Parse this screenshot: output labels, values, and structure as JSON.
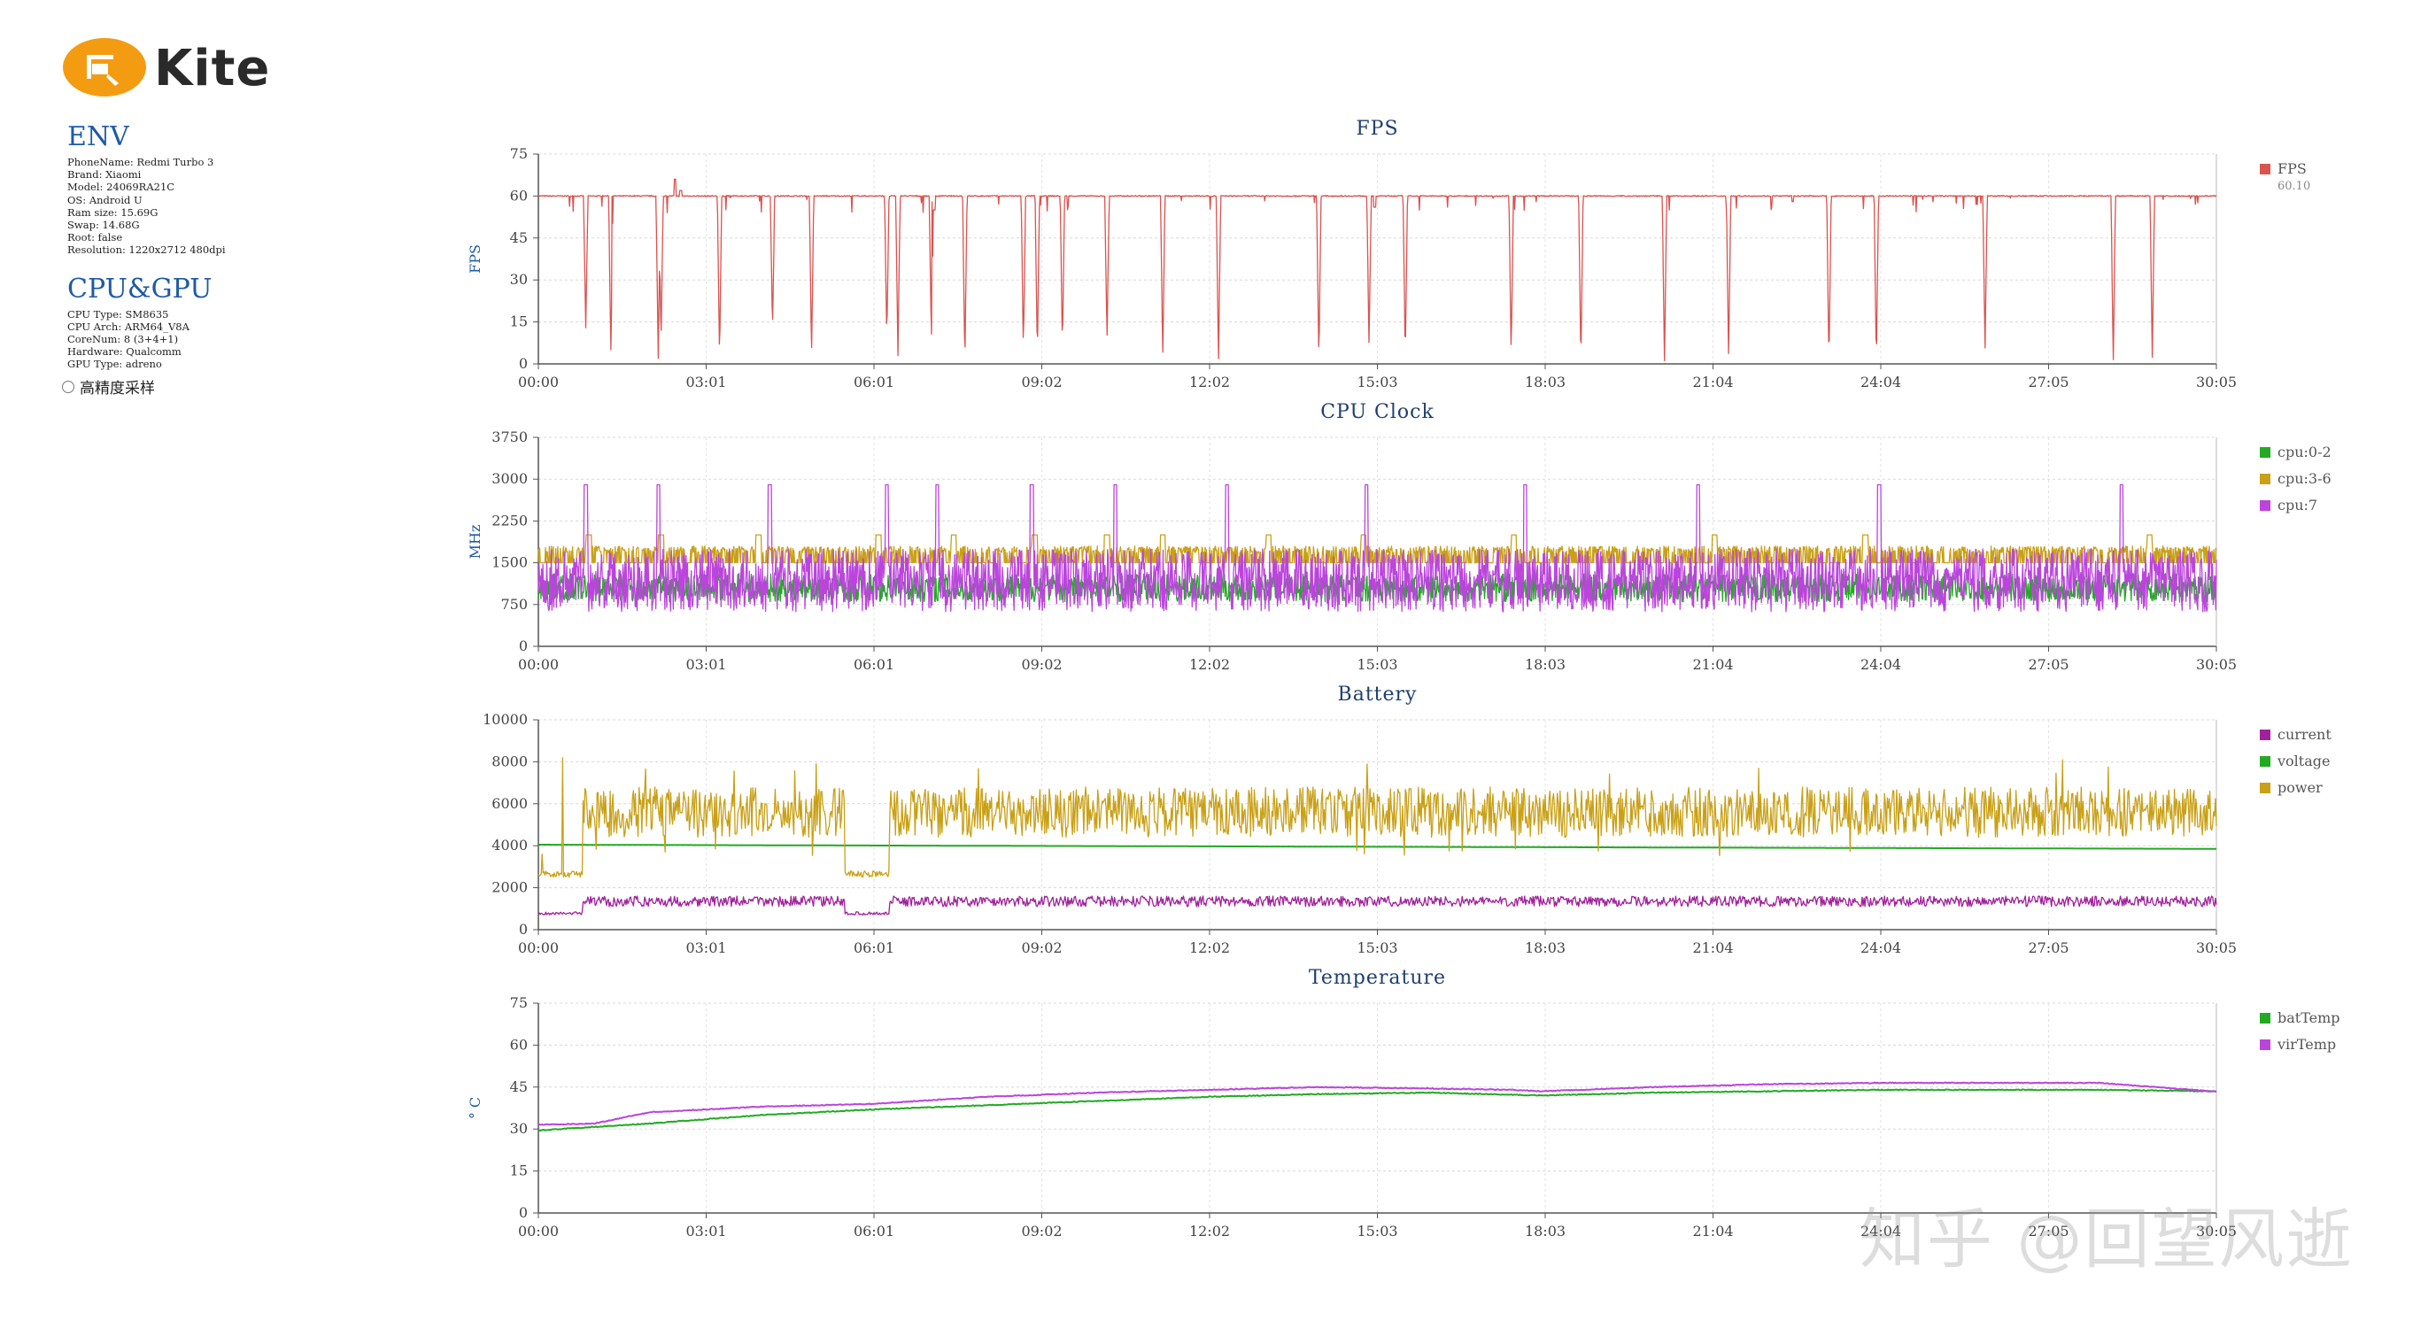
{
  "app": {
    "logo_text": "Kite",
    "brand_color": "#f39c12"
  },
  "env": {
    "title": "ENV",
    "items": [
      "PhoneName: Redmi Turbo 3",
      "Brand: Xiaomi",
      "Model: 24069RA21C",
      "OS: Android U",
      "Ram size: 15.69G",
      "Swap: 14.68G",
      "Root: false",
      "Resolution: 1220x2712 480dpi"
    ]
  },
  "cpu_gpu": {
    "title": "CPU&GPU",
    "items": [
      "CPU Type: SM8635",
      "CPU Arch: ARM64_V8A",
      "CoreNum: 8 (3+4+1)",
      "Hardware: Qualcomm",
      "GPU Type: adreno"
    ]
  },
  "high_precision": {
    "label": "高精度采样",
    "checked": false
  },
  "watermark": "知乎 @回望风逝",
  "chart_data": [
    {
      "type": "line",
      "title": "FPS",
      "ylabel": "FPS",
      "ylim": [
        0,
        75
      ],
      "yticks": [
        "0",
        "15",
        "30",
        "45",
        "60",
        "75"
      ],
      "xticks": [
        "00:00",
        "03:01",
        "06:01",
        "09:02",
        "12:02",
        "15:03",
        "18:03",
        "21:04",
        "24:04",
        "27:05",
        "30:05"
      ],
      "grid": true,
      "legend_position": "right",
      "legend_extra": "60.10",
      "series": [
        {
          "name": "FPS",
          "color": "#d9534f",
          "baseline": 60,
          "noise": 0.4,
          "dips": [
            [
              0.85,
              12
            ],
            [
              1.3,
              4
            ],
            [
              2.15,
              2
            ],
            [
              2.2,
              7
            ],
            [
              3.25,
              2
            ],
            [
              4.2,
              12
            ],
            [
              4.9,
              3
            ],
            [
              6.25,
              9
            ],
            [
              6.45,
              3
            ],
            [
              7.05,
              8
            ],
            [
              7.65,
              0
            ],
            [
              8.7,
              5
            ],
            [
              8.95,
              3
            ],
            [
              9.4,
              6
            ],
            [
              10.2,
              8
            ],
            [
              11.2,
              2
            ],
            [
              12.2,
              0
            ],
            [
              14.0,
              1
            ],
            [
              14.9,
              7
            ],
            [
              15.55,
              2
            ],
            [
              17.45,
              3
            ],
            [
              18.7,
              0
            ],
            [
              20.2,
              0
            ],
            [
              21.35,
              3
            ],
            [
              23.15,
              0
            ],
            [
              24.0,
              0
            ],
            [
              25.95,
              5
            ],
            [
              28.25,
              0
            ],
            [
              28.95,
              2
            ]
          ],
          "spikes": [
            [
              2.45,
              66
            ],
            [
              2.55,
              62
            ],
            [
              7.1,
              55
            ],
            [
              15.0,
              56
            ],
            [
              22.5,
              58
            ],
            [
              25.8,
              57
            ]
          ],
          "t_max": 30.1
        }
      ]
    },
    {
      "type": "line",
      "title": "CPU Clock",
      "ylabel": "MHz",
      "ylim": [
        0,
        3750
      ],
      "yticks": [
        "0",
        "750",
        "1500",
        "2250",
        "3000",
        "3750"
      ],
      "xticks": [
        "00:00",
        "03:01",
        "06:01",
        "09:02",
        "12:02",
        "15:03",
        "18:03",
        "21:04",
        "24:04",
        "27:05",
        "30:05"
      ],
      "grid": true,
      "legend_position": "right",
      "series": [
        {
          "name": "cpu:0-2",
          "color": "#22aa22",
          "low": 650,
          "high": 1300,
          "t_max": 30.1
        },
        {
          "name": "cpu:3-6",
          "color": "#c9a016",
          "low": 1500,
          "high": 1800,
          "spikes_at": [
            0.9,
            2.2,
            3.95,
            6.1,
            7.45,
            8.9,
            10.2,
            11.2,
            13.1,
            14.8,
            17.5,
            21.1,
            23.8,
            28.9
          ],
          "spike_value": 2000,
          "t_max": 30.1
        },
        {
          "name": "cpu:7",
          "color": "#bb44dd",
          "low": 620,
          "high": 1750,
          "spikes_at": [
            0.85,
            2.15,
            4.15,
            6.25,
            7.15,
            8.85,
            10.35,
            12.35,
            14.85,
            17.7,
            20.8,
            24.05,
            28.4
          ],
          "spike_value": 2900,
          "t_max": 30.1
        }
      ]
    },
    {
      "type": "line",
      "title": "Battery",
      "ylabel": "",
      "ylim": [
        0,
        10000
      ],
      "yticks": [
        "0",
        "2000",
        "4000",
        "6000",
        "8000",
        "10000"
      ],
      "xticks": [
        "00:00",
        "03:01",
        "06:01",
        "09:02",
        "12:02",
        "15:03",
        "18:03",
        "21:04",
        "24:04",
        "27:05",
        "30:05"
      ],
      "grid": true,
      "legend_position": "right",
      "series": [
        {
          "name": "current",
          "color": "#a0229b",
          "level_low": 700,
          "level_high": 1500,
          "t_max": 30.1
        },
        {
          "name": "voltage",
          "color": "#22aa22",
          "start": 4050,
          "end": 3850,
          "t_max": 30.1
        },
        {
          "name": "power",
          "color": "#c9a016",
          "level_low": 2500,
          "level_high": 5600,
          "peak": 8200,
          "t_max": 30.1
        }
      ]
    },
    {
      "type": "line",
      "title": "Temperature",
      "ylabel": "° C",
      "ylim": [
        0,
        75
      ],
      "yticks": [
        "0",
        "15",
        "30",
        "45",
        "60",
        "75"
      ],
      "xticks": [
        "00:00",
        "03:01",
        "06:01",
        "09:02",
        "12:02",
        "15:03",
        "18:03",
        "21:04",
        "24:04",
        "27:05",
        "30:05"
      ],
      "grid": true,
      "legend_position": "right",
      "series": [
        {
          "name": "batTemp",
          "color": "#22aa22",
          "points": [
            [
              0,
              29.5
            ],
            [
              2,
              32
            ],
            [
              4,
              35
            ],
            [
              6,
              37
            ],
            [
              8,
              38.5
            ],
            [
              10,
              40
            ],
            [
              12,
              41.5
            ],
            [
              14,
              42.5
            ],
            [
              16,
              43
            ],
            [
              18,
              42
            ],
            [
              20,
              43
            ],
            [
              22,
              43.5
            ],
            [
              24,
              44
            ],
            [
              26,
              44
            ],
            [
              28,
              44
            ],
            [
              30,
              43.5
            ]
          ]
        },
        {
          "name": "virTemp",
          "color": "#bb44dd",
          "points": [
            [
              0,
              31.5
            ],
            [
              1,
              32
            ],
            [
              2,
              36
            ],
            [
              4,
              38
            ],
            [
              6,
              39
            ],
            [
              8,
              41.5
            ],
            [
              10,
              43
            ],
            [
              12,
              44
            ],
            [
              14,
              45
            ],
            [
              16,
              44.5
            ],
            [
              17.5,
              44
            ],
            [
              18,
              43.5
            ],
            [
              20,
              45
            ],
            [
              22,
              46
            ],
            [
              24,
              46.5
            ],
            [
              26,
              46.5
            ],
            [
              28,
              46.5
            ],
            [
              30,
              43.5
            ]
          ]
        }
      ]
    }
  ]
}
